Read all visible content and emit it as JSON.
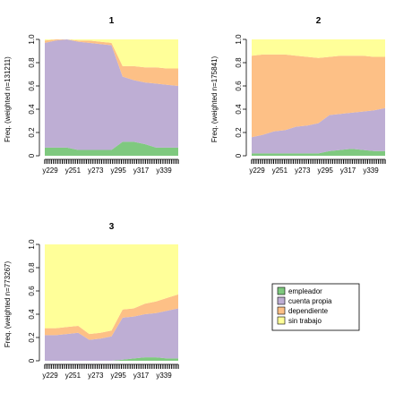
{
  "chart_data": [
    {
      "type": "area",
      "title": "1",
      "ylabel": "Freq. (weighted n=131211)",
      "ylim": [
        0,
        1
      ],
      "yticks": [
        "0",
        "0.2",
        "0.4",
        "0.6",
        "0.8",
        "1.0"
      ],
      "xticklabels": [
        "y229",
        "y251",
        "y273",
        "y295",
        "y317",
        "y339"
      ],
      "x": [
        "y229",
        "y240",
        "y251",
        "y262",
        "y273",
        "y284",
        "y295",
        "y300",
        "y306",
        "y317",
        "y328",
        "y339",
        "y346"
      ],
      "series": [
        {
          "name": "empleador",
          "values": [
            0.07,
            0.07,
            0.07,
            0.05,
            0.05,
            0.05,
            0.05,
            0.12,
            0.12,
            0.1,
            0.07,
            0.07,
            0.07
          ]
        },
        {
          "name": "cuenta propia",
          "values": [
            0.9,
            0.92,
            0.93,
            0.93,
            0.92,
            0.91,
            0.9,
            0.56,
            0.53,
            0.53,
            0.55,
            0.54,
            0.53
          ]
        },
        {
          "name": "dependiente",
          "values": [
            0.02,
            0.01,
            0.0,
            0.01,
            0.02,
            0.02,
            0.02,
            0.09,
            0.12,
            0.13,
            0.14,
            0.14,
            0.15
          ]
        },
        {
          "name": "sin trabajo",
          "values": [
            0.01,
            0.0,
            0.0,
            0.01,
            0.01,
            0.02,
            0.03,
            0.23,
            0.23,
            0.24,
            0.24,
            0.25,
            0.25
          ]
        }
      ]
    },
    {
      "type": "area",
      "title": "2",
      "ylabel": "Freq. (weighted n=175841)",
      "ylim": [
        0,
        1
      ],
      "yticks": [
        "0",
        "0.2",
        "0.4",
        "0.6",
        "0.8",
        "1.0"
      ],
      "xticklabels": [
        "y229",
        "y251",
        "y273",
        "y295",
        "y317",
        "y339"
      ],
      "x": [
        "y229",
        "y240",
        "y251",
        "y262",
        "y273",
        "y284",
        "y295",
        "y300",
        "y306",
        "y317",
        "y328",
        "y339",
        "y346"
      ],
      "series": [
        {
          "name": "empleador",
          "values": [
            0.02,
            0.02,
            0.02,
            0.02,
            0.02,
            0.02,
            0.02,
            0.04,
            0.05,
            0.06,
            0.05,
            0.04,
            0.04
          ]
        },
        {
          "name": "cuenta propia",
          "values": [
            0.14,
            0.16,
            0.19,
            0.2,
            0.23,
            0.24,
            0.26,
            0.31,
            0.31,
            0.31,
            0.33,
            0.35,
            0.37
          ]
        },
        {
          "name": "dependiente",
          "values": [
            0.7,
            0.69,
            0.66,
            0.65,
            0.61,
            0.59,
            0.56,
            0.5,
            0.5,
            0.49,
            0.48,
            0.46,
            0.44
          ]
        },
        {
          "name": "sin trabajo",
          "values": [
            0.14,
            0.13,
            0.13,
            0.13,
            0.14,
            0.15,
            0.16,
            0.15,
            0.14,
            0.14,
            0.14,
            0.15,
            0.15
          ]
        }
      ]
    },
    {
      "type": "area",
      "title": "3",
      "ylabel": "Freq. (weighted n=773267)",
      "ylim": [
        0,
        1
      ],
      "yticks": [
        "0",
        "0.2",
        "0.4",
        "0.6",
        "0.8",
        "1.0"
      ],
      "xticklabels": [
        "y229",
        "y251",
        "y273",
        "y295",
        "y317",
        "y339"
      ],
      "x": [
        "y229",
        "y240",
        "y251",
        "y262",
        "y273",
        "y284",
        "y295",
        "y300",
        "y306",
        "y317",
        "y328",
        "y339",
        "y346"
      ],
      "series": [
        {
          "name": "empleador",
          "values": [
            0.0,
            0.0,
            0.0,
            0.0,
            0.0,
            0.0,
            0.0,
            0.01,
            0.02,
            0.03,
            0.03,
            0.02,
            0.02
          ]
        },
        {
          "name": "cuenta propia",
          "values": [
            0.22,
            0.22,
            0.23,
            0.24,
            0.18,
            0.19,
            0.21,
            0.36,
            0.36,
            0.37,
            0.38,
            0.41,
            0.43
          ]
        },
        {
          "name": "dependiente",
          "values": [
            0.06,
            0.06,
            0.06,
            0.06,
            0.05,
            0.05,
            0.05,
            0.07,
            0.07,
            0.09,
            0.1,
            0.11,
            0.12
          ]
        },
        {
          "name": "sin trabajo",
          "values": [
            0.72,
            0.72,
            0.71,
            0.7,
            0.77,
            0.76,
            0.74,
            0.56,
            0.55,
            0.51,
            0.49,
            0.46,
            0.43
          ]
        }
      ]
    }
  ],
  "legend": {
    "entries": [
      "empleador",
      "cuenta propia",
      "dependiente",
      "sin trabajo"
    ]
  },
  "colors": {
    "empleador": "#7fc97f",
    "cuenta propia": "#beaed4",
    "dependiente": "#fdc086",
    "sin trabajo": "#ffff99"
  }
}
